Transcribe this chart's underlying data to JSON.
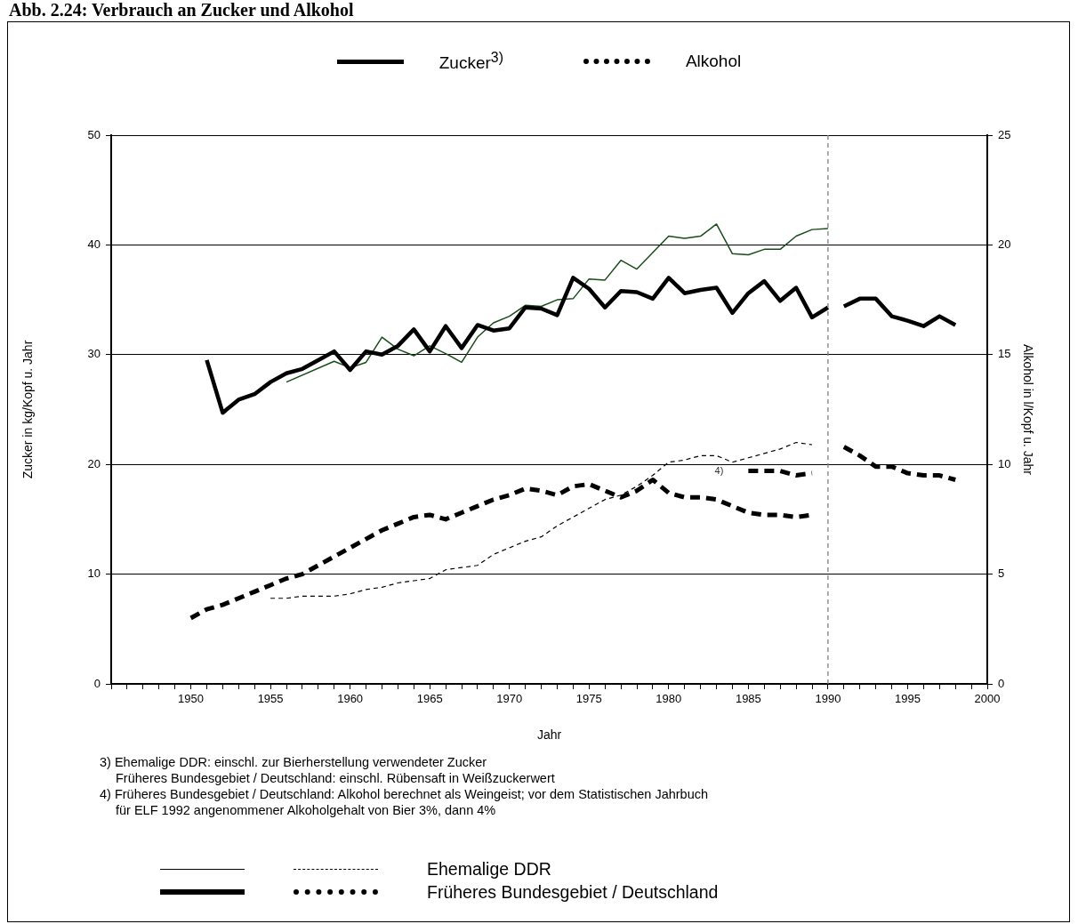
{
  "chart_data": {
    "type": "line",
    "title": "Abb. 2.24: Verbrauch an Zucker und Alkohol",
    "xlabel": "Jahr",
    "ylabel": "Zucker in kg/Kopf u. Jahr",
    "y2label": "Alkohol in l/Kopf u. Jahr",
    "xlim": [
      1945,
      2000
    ],
    "xticks": [
      {
        "value": 1945,
        "label": null
      },
      {
        "value": 1946,
        "label": null
      },
      {
        "value": 1947,
        "label": null
      },
      {
        "value": 1948,
        "label": null
      },
      {
        "value": 1949,
        "label": null
      },
      1950,
      {
        "value": 1951,
        "label": null
      },
      {
        "value": 1952,
        "label": null
      },
      {
        "value": 1953,
        "label": null
      },
      {
        "value": 1954,
        "label": null
      },
      1955,
      {
        "value": 1956,
        "label": null
      },
      {
        "value": 1957,
        "label": null
      },
      {
        "value": 1958,
        "label": null
      },
      {
        "value": 1959,
        "label": null
      },
      1960,
      {
        "value": 1961,
        "label": null
      },
      {
        "value": 1962,
        "label": null
      },
      {
        "value": 1963,
        "label": null
      },
      {
        "value": 1964,
        "label": null
      },
      1965,
      {
        "value": 1966,
        "label": null
      },
      {
        "value": 1967,
        "label": null
      },
      {
        "value": 1968,
        "label": null
      },
      {
        "value": 1969,
        "label": null
      },
      1970,
      {
        "value": 1971,
        "label": null
      },
      {
        "value": 1972,
        "label": null
      },
      {
        "value": 1973,
        "label": null
      },
      {
        "value": 1974,
        "label": null
      },
      1975,
      {
        "value": 1976,
        "label": null
      },
      {
        "value": 1977,
        "label": null
      },
      {
        "value": 1978,
        "label": null
      },
      {
        "value": 1979,
        "label": null
      },
      1980,
      {
        "value": 1981,
        "label": null
      },
      {
        "value": 1982,
        "label": null
      },
      {
        "value": 1983,
        "label": null
      },
      {
        "value": 1984,
        "label": null
      },
      1985,
      {
        "value": 1986,
        "label": null
      },
      {
        "value": 1987,
        "label": null
      },
      {
        "value": 1988,
        "label": null
      },
      {
        "value": 1989,
        "label": null
      },
      1990,
      {
        "value": 1991,
        "label": null
      },
      {
        "value": 1992,
        "label": null
      },
      {
        "value": 1993,
        "label": null
      },
      {
        "value": 1994,
        "label": null
      },
      1995,
      {
        "value": 1996,
        "label": null
      },
      {
        "value": 1997,
        "label": null
      },
      {
        "value": 1998,
        "label": null
      },
      {
        "value": 1999,
        "label": null
      },
      2000
    ],
    "ylim": [
      0,
      50
    ],
    "yticks": [
      0,
      10,
      20,
      30,
      40,
      50
    ],
    "y2lim": [
      0,
      25
    ],
    "y2ticks": [
      0,
      5,
      10,
      15,
      20,
      25
    ],
    "grid": "y",
    "legend": "top",
    "series": [
      {
        "name": "Zucker$^{3)}$",
        "color": "#000000",
        "line_style": "solid",
        "x": [
          1951,
          1952,
          1953,
          1954,
          1955,
          1956,
          1957,
          1958,
          1959,
          1960,
          1961,
          1962,
          1963,
          1964,
          1965,
          1966,
          1967,
          1968,
          1969,
          1970,
          1971,
          1972,
          1973,
          1974,
          1975,
          1976,
          1977,
          1978,
          1979,
          1980,
          1981,
          1982,
          1983,
          1984,
          1985,
          1986,
          1987,
          1988,
          1989,
          1990,
          1990.5,
          1991,
          1992,
          1993,
          1994,
          1995,
          1996,
          1997,
          1998
        ],
        "values": [
          29.5,
          24.7,
          25.9,
          26.4,
          27.5,
          28.3,
          28.7,
          29.5,
          30.3,
          28.6,
          30.3,
          30.0,
          30.8,
          32.3,
          30.3,
          32.6,
          30.6,
          32.7,
          32.2,
          32.4,
          34.3,
          34.2,
          33.6,
          37.0,
          36.0,
          34.3,
          35.8,
          35.7,
          35.1,
          37.0,
          35.6,
          35.9,
          36.1,
          33.8,
          35.6,
          36.7,
          34.9,
          36.1,
          33.4,
          34.3,
          null,
          34.4,
          35.1,
          35.1,
          33.5,
          33.1,
          32.6,
          33.5,
          32.7
        ]
      },
      {
        "color": "#184d18",
        "line_style": "solid",
        "x": [
          1956,
          1959,
          1960,
          1961,
          1962,
          1963,
          1964,
          1965,
          1966,
          1967,
          1968,
          1969,
          1970,
          1971,
          1972,
          1973,
          1974,
          1975,
          1976,
          1977,
          1978,
          1980,
          1981,
          1982,
          1983,
          1984,
          1985,
          1986,
          1987,
          1988,
          1989,
          1990
        ],
        "values": [
          27.5,
          29.4,
          28.8,
          29.3,
          31.6,
          30.5,
          29.9,
          30.8,
          30.1,
          29.3,
          31.6,
          32.9,
          33.5,
          34.5,
          34.4,
          35.0,
          35.1,
          36.9,
          36.8,
          38.6,
          37.8,
          40.8,
          40.6,
          40.8,
          41.9,
          39.2,
          39.1,
          39.6,
          39.6,
          40.8,
          41.4,
          41.5
        ]
      },
      {
        "name": "Alkohol",
        "color": "#000000",
        "line_style": "dashed",
        "axis": "y2",
        "x": [
          1950,
          1951,
          1952,
          1953,
          1954,
          1955,
          1956,
          1957,
          1958,
          1959,
          1960,
          1961,
          1962,
          1963,
          1964,
          1965,
          1966,
          1967,
          1968,
          1969,
          1970,
          1971,
          1972,
          1973,
          1974,
          1975,
          1976,
          1977,
          1978,
          1979,
          1980,
          1981,
          1982,
          1983,
          1984,
          1985,
          1986,
          1987,
          1988,
          1989
        ],
        "values": [
          3.0,
          3.4,
          3.6,
          3.9,
          4.2,
          4.5,
          4.8,
          5.0,
          5.4,
          5.8,
          6.2,
          6.6,
          7.0,
          7.3,
          7.6,
          7.7,
          7.5,
          7.8,
          8.1,
          8.4,
          8.6,
          8.9,
          8.8,
          8.6,
          9.0,
          9.1,
          8.8,
          8.5,
          8.8,
          9.3,
          8.7,
          8.5,
          8.5,
          8.4,
          8.1,
          7.8,
          7.7,
          7.7,
          7.6,
          7.7
        ]
      },
      {
        "color": "#000000",
        "line_style": "dashed",
        "axis": "y2",
        "x": [
          1985,
          1986,
          1987,
          1988,
          1989,
          1990,
          1991,
          1992,
          1993,
          1994,
          1995,
          1996,
          1997,
          1998
        ],
        "values": [
          9.7,
          9.7,
          9.7,
          9.5,
          9.6,
          null,
          10.8,
          10.4,
          9.9,
          9.9,
          9.6,
          9.5,
          9.5,
          9.3
        ]
      },
      {
        "color": "#000000",
        "line_style": "dashed",
        "axis": "y2",
        "x": [
          1955,
          1956,
          1957,
          1958,
          1959,
          1960,
          1961,
          1962,
          1963,
          1964,
          1965,
          1966,
          1967,
          1968,
          1969,
          1970,
          1971,
          1972,
          1973,
          1974,
          1975,
          1976,
          1977,
          1978,
          1979,
          1980,
          1981,
          1982,
          1983,
          1984,
          1985,
          1986,
          1987,
          1988,
          1989
        ],
        "values": [
          3.9,
          3.9,
          4.0,
          4.0,
          4.0,
          4.1,
          4.3,
          4.4,
          4.6,
          4.7,
          4.8,
          5.2,
          5.3,
          5.4,
          5.9,
          6.2,
          6.5,
          6.7,
          7.2,
          7.6,
          8.0,
          8.4,
          8.6,
          9.0,
          9.5,
          10.1,
          10.2,
          10.4,
          10.4,
          10.1,
          10.3,
          10.5,
          10.7,
          11.0,
          10.9
        ]
      }
    ],
    "ref_lines": [
      {
        "axis": "x",
        "value": 1990,
        "color": "#808080",
        "line_style": "dashed"
      }
    ],
    "annotations": [
      "4)",
      "3) Ehemalige DDR: einschl. zur Bierherstellung verwendeter Zucker\nFrüheres Bundesgebiet / Deutschland: einschl. Rübensaft in Weißzuckerwert",
      "4) Früheres Bundesgebiet / Deutschland: Alkohol berechnet als Weingeist; vor dem Statistischen Jahrbuch\nfür ELF 1992 angenommener Alkoholgehalt von Bier 3%, dann 4%",
      "Ehemalige DDR",
      "Früheres Bundesgebiet / Deutschland"
    ]
  }
}
